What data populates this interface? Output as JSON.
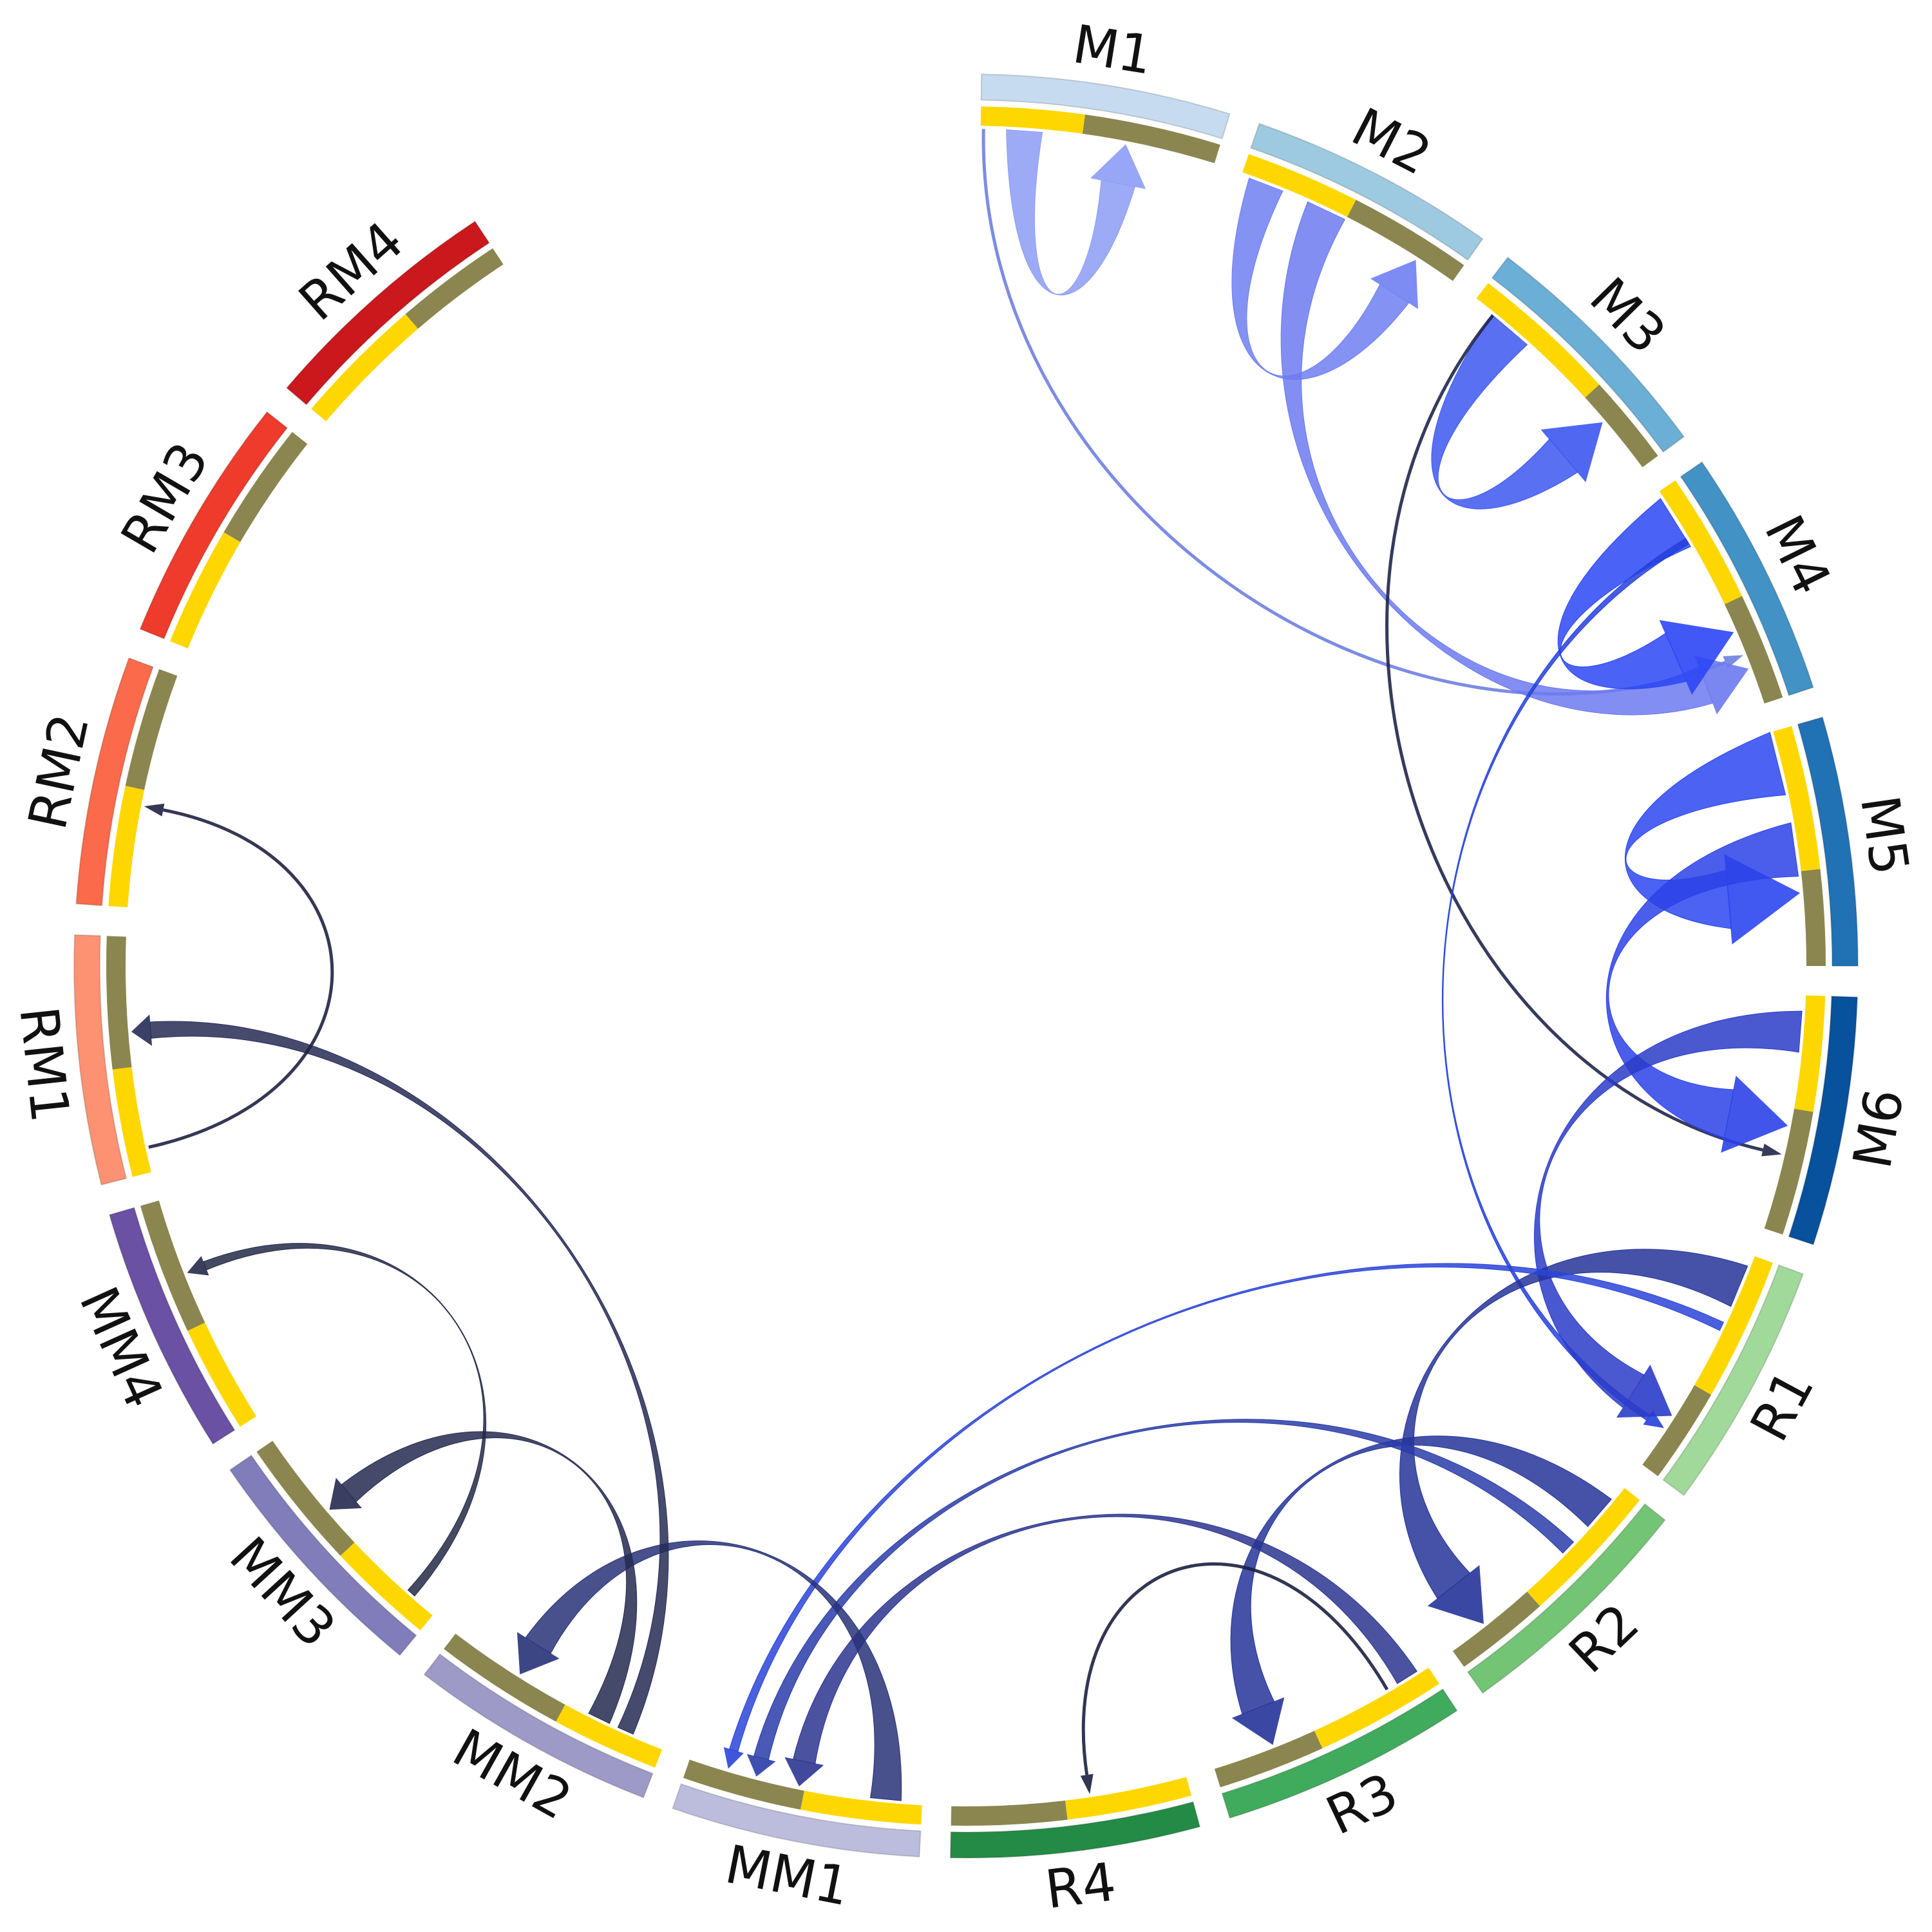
{
  "chart_data": {
    "type": "chord",
    "title": "",
    "segments": [
      {
        "label": "M1",
        "color": "#C6DBEF",
        "start": 1.0,
        "end": 17.2,
        "in_out_split": 0.43,
        "text_color": "#111111"
      },
      {
        "label": "M2",
        "color": "#9ECAE1",
        "start": 19.2,
        "end": 35.4,
        "in_out_split": 0.48
      },
      {
        "label": "M3",
        "color": "#6BAED6",
        "start": 37.4,
        "end": 53.6,
        "in_out_split": 0.62
      },
      {
        "label": "M4",
        "color": "#4292C6",
        "start": 55.6,
        "end": 71.8,
        "in_out_split": 0.55
      },
      {
        "label": "M5",
        "color": "#2171B5",
        "start": 73.8,
        "end": 90.0,
        "in_out_split": 0.6
      },
      {
        "label": "M6",
        "color": "#08519C",
        "start": 92.0,
        "end": 108.2,
        "in_out_split": 0.48
      },
      {
        "label": "R1",
        "color": "#A1D99B",
        "start": 110.2,
        "end": 126.4,
        "in_out_split": 0.6
      },
      {
        "label": "R2",
        "color": "#74C476",
        "start": 128.4,
        "end": 144.6,
        "in_out_split": 0.6
      },
      {
        "label": "R3",
        "color": "#41AB5D",
        "start": 146.6,
        "end": 162.8,
        "in_out_split": 0.55
      },
      {
        "label": "R4",
        "color": "#238B45",
        "start": 164.8,
        "end": 181.0,
        "in_out_split": 0.52
      },
      {
        "label": "MM1",
        "color": "#BCBDDC",
        "start": 183.0,
        "end": 199.2,
        "in_out_split": 0.5
      },
      {
        "label": "MM2",
        "color": "#9E9AC8",
        "start": 201.2,
        "end": 217.4,
        "in_out_split": 0.45
      },
      {
        "label": "MM3",
        "color": "#807DBA",
        "start": 219.4,
        "end": 235.6,
        "in_out_split": 0.45
      },
      {
        "label": "MM4",
        "color": "#6A51A3",
        "start": 237.6,
        "end": 253.8,
        "in_out_split": 0.45
      },
      {
        "label": "RM1",
        "color": "#FC9272",
        "start": 255.8,
        "end": 272.0,
        "in_out_split": 0.45
      },
      {
        "label": "RM2",
        "color": "#FB6A4A",
        "start": 274.0,
        "end": 290.2,
        "in_out_split": 0.5
      },
      {
        "label": "RM3",
        "color": "#EF3B2C",
        "start": 292.2,
        "end": 308.4,
        "in_out_split": 0.5
      },
      {
        "label": "RM4",
        "color": "#CB181D",
        "start": 310.4,
        "end": 326.6,
        "in_out_split": 0.55
      }
    ],
    "inner_track_colors": {
      "outgoing": "#FFD700",
      "incoming": "#8B8550"
    },
    "links": [
      {
        "from": "M1",
        "to": "M1",
        "from_angle": 4.0,
        "to_angle": 11.0,
        "width": 2.8,
        "color": "#8C9CF5"
      },
      {
        "from": "M1",
        "to": "M4",
        "from_angle": 1.2,
        "to_angle": 68.2,
        "width": 0.25,
        "color": "#6F7FE0"
      },
      {
        "from": "M2",
        "to": "M2",
        "from_angle": 21.0,
        "to_angle": 32.5,
        "width": 2.8,
        "color": "#6F7FF2"
      },
      {
        "from": "M2",
        "to": "M4",
        "from_angle": 25.5,
        "to_angle": 69.2,
        "width": 3.2,
        "color": "#6C7AF0"
      },
      {
        "from": "M3",
        "to": "M3",
        "from_angle": 40.5,
        "to_angle": 49.5,
        "width": 3.6,
        "color": "#3D57F0"
      },
      {
        "from": "M3",
        "to": "M6",
        "from_angle": 39.0,
        "to_angle": 103.0,
        "width": 0.25,
        "color": "#20264A"
      },
      {
        "from": "M4",
        "to": "M4",
        "from_angle": 58.0,
        "to_angle": 66.5,
        "width": 4.4,
        "color": "#2C46F5"
      },
      {
        "from": "M4",
        "to": "R1",
        "from_angle": 59.5,
        "to_angle": 123.5,
        "width": 0.5,
        "color": "#2440DD"
      },
      {
        "from": "M5",
        "to": "M5",
        "from_angle": 76.0,
        "to_angle": 85.0,
        "width": 5.0,
        "color": "#2C46F0"
      },
      {
        "from": "M5",
        "to": "M6",
        "from_angle": 82.0,
        "to_angle": 101.0,
        "width": 4.2,
        "color": "#2C42E8"
      },
      {
        "from": "M6",
        "to": "R1",
        "from_angle": 94.5,
        "to_angle": 122.5,
        "width": 3.2,
        "color": "#2B3CC8"
      },
      {
        "from": "R1",
        "to": "R2",
        "from_angle": 112.5,
        "to_angle": 141.8,
        "width": 3.4,
        "color": "#253499"
      },
      {
        "from": "R1",
        "to": "MM1",
        "from_angle": 115.5,
        "to_angle": 196.5,
        "width": 0.7,
        "color": "#2A44D8"
      },
      {
        "from": "R2",
        "to": "R3",
        "from_angle": 130.8,
        "to_angle": 158.5,
        "width": 2.8,
        "color": "#253499"
      },
      {
        "from": "R2",
        "to": "MM1",
        "from_angle": 134.0,
        "to_angle": 194.5,
        "width": 1.2,
        "color": "#2A3CA8"
      },
      {
        "from": "R3",
        "to": "R4",
        "from_angle": 149.8,
        "to_angle": 171.5,
        "width": 0.25,
        "color": "#1C2040"
      },
      {
        "from": "R3",
        "to": "MM1",
        "from_angle": 148.2,
        "to_angle": 191.5,
        "width": 1.8,
        "color": "#2B3590"
      },
      {
        "from": "MM1",
        "to": "MM2",
        "from_angle": 185.5,
        "to_angle": 212.2,
        "width": 2.4,
        "color": "#283278"
      },
      {
        "from": "MM2",
        "to": "RM1",
        "from_angle": 204.0,
        "to_angle": 265.5,
        "width": 1.3,
        "color": "#262B55"
      },
      {
        "from": "MM2",
        "to": "MM3",
        "from_angle": 206.0,
        "to_angle": 229.5,
        "width": 1.8,
        "color": "#252A50"
      },
      {
        "from": "MM3",
        "to": "MM4",
        "from_angle": 221.5,
        "to_angle": 248.5,
        "width": 0.7,
        "color": "#252A48"
      },
      {
        "from": "RM1",
        "to": "RM2",
        "from_angle": 257.5,
        "to_angle": 281.0,
        "width": 0.25,
        "color": "#1E2240"
      }
    ]
  }
}
